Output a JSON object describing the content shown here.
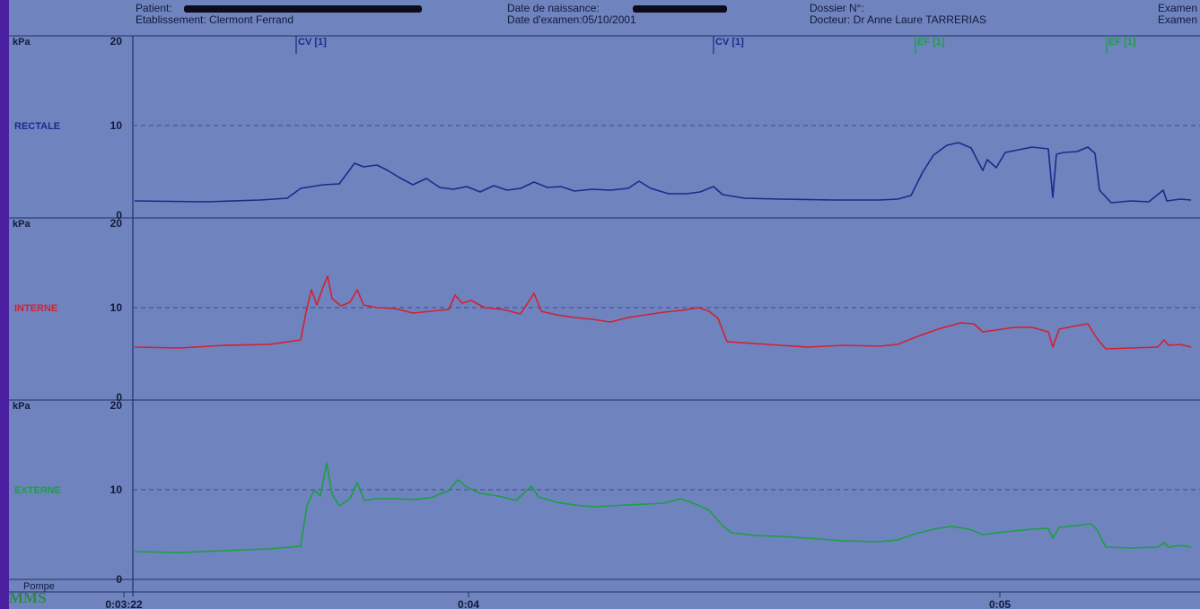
{
  "header": {
    "patient_label": "Patient:",
    "establishment": "Etablissement: Clermont Ferrand",
    "birth_label": "Date de naissance:",
    "exam_date": "Date d'examen:05/10/2001",
    "dossier": "Dossier N°:",
    "doctor": "Docteur: Dr Anne Laure TARRERIAS",
    "exam_1": "Examen",
    "exam_2": "Examen"
  },
  "logo": "MMS",
  "pump_label": "Pompe",
  "colors": {
    "rectale": "#1c2a8c",
    "interne": "#d42030",
    "externe": "#1aa040",
    "cv": "#1c2a8c",
    "ef": "#1aa040"
  },
  "chart_data": {
    "type": "line",
    "x_ticks": [
      "0:03:22",
      "0:04",
      "0:05"
    ],
    "markers": [
      {
        "label": "CV [1]",
        "x": 330,
        "color": "#1c2a8c"
      },
      {
        "label": "CV [1]",
        "x": 795,
        "color": "#1c2a8c"
      },
      {
        "label": "EF [1]",
        "x": 1020,
        "color": "#1aa040"
      },
      {
        "label": "EF [1]",
        "x": 1233,
        "color": "#1aa040"
      }
    ],
    "panels": [
      {
        "name": "RECTALE",
        "unit": "kPa",
        "ylim": [
          0,
          20
        ],
        "y_ticks": [
          "20",
          "10",
          "0"
        ],
        "color": "#1c2a8c",
        "points": [
          [
            150,
            1.6
          ],
          [
            230,
            1.5
          ],
          [
            290,
            1.7
          ],
          [
            320,
            1.9
          ],
          [
            335,
            3.0
          ],
          [
            360,
            3.4
          ],
          [
            378,
            3.5
          ],
          [
            395,
            5.8
          ],
          [
            405,
            5.4
          ],
          [
            420,
            5.6
          ],
          [
            432,
            5.0
          ],
          [
            445,
            4.2
          ],
          [
            460,
            3.4
          ],
          [
            475,
            4.1
          ],
          [
            490,
            3.1
          ],
          [
            505,
            2.9
          ],
          [
            520,
            3.2
          ],
          [
            535,
            2.6
          ],
          [
            550,
            3.3
          ],
          [
            565,
            2.8
          ],
          [
            580,
            3.0
          ],
          [
            595,
            3.7
          ],
          [
            610,
            3.1
          ],
          [
            625,
            3.2
          ],
          [
            640,
            2.7
          ],
          [
            660,
            2.9
          ],
          [
            680,
            2.8
          ],
          [
            700,
            3.0
          ],
          [
            712,
            3.8
          ],
          [
            725,
            3.0
          ],
          [
            745,
            2.4
          ],
          [
            765,
            2.4
          ],
          [
            780,
            2.6
          ],
          [
            795,
            3.2
          ],
          [
            805,
            2.3
          ],
          [
            830,
            1.9
          ],
          [
            870,
            1.8
          ],
          [
            930,
            1.7
          ],
          [
            980,
            1.7
          ],
          [
            1000,
            1.8
          ],
          [
            1015,
            2.2
          ],
          [
            1028,
            4.8
          ],
          [
            1040,
            6.7
          ],
          [
            1055,
            7.8
          ],
          [
            1068,
            8.1
          ],
          [
            1082,
            7.5
          ],
          [
            1095,
            5.0
          ],
          [
            1100,
            6.2
          ],
          [
            1110,
            5.3
          ],
          [
            1120,
            7.0
          ],
          [
            1135,
            7.3
          ],
          [
            1150,
            7.6
          ],
          [
            1168,
            7.4
          ],
          [
            1173,
            2.0
          ],
          [
            1177,
            6.8
          ],
          [
            1185,
            7.0
          ],
          [
            1200,
            7.1
          ],
          [
            1212,
            7.6
          ],
          [
            1220,
            6.9
          ],
          [
            1225,
            2.8
          ],
          [
            1238,
            1.4
          ],
          [
            1260,
            1.6
          ],
          [
            1280,
            1.5
          ],
          [
            1296,
            2.8
          ],
          [
            1300,
            1.6
          ],
          [
            1315,
            1.8
          ],
          [
            1327,
            1.7
          ]
        ]
      },
      {
        "name": "INTERNE",
        "unit": "kPa",
        "ylim": [
          0,
          20
        ],
        "y_ticks": [
          "20",
          "10",
          "0"
        ],
        "color": "#d42030",
        "points": [
          [
            150,
            5.6
          ],
          [
            200,
            5.5
          ],
          [
            250,
            5.8
          ],
          [
            300,
            5.9
          ],
          [
            335,
            6.4
          ],
          [
            341,
            9.5
          ],
          [
            347,
            12.0
          ],
          [
            353,
            10.3
          ],
          [
            360,
            12.3
          ],
          [
            365,
            13.5
          ],
          [
            370,
            11.0
          ],
          [
            380,
            10.2
          ],
          [
            390,
            10.6
          ],
          [
            398,
            12.0
          ],
          [
            405,
            10.3
          ],
          [
            420,
            10.0
          ],
          [
            440,
            9.9
          ],
          [
            460,
            9.4
          ],
          [
            480,
            9.6
          ],
          [
            500,
            9.8
          ],
          [
            507,
            11.4
          ],
          [
            515,
            10.5
          ],
          [
            525,
            10.8
          ],
          [
            540,
            10.0
          ],
          [
            560,
            9.8
          ],
          [
            580,
            9.3
          ],
          [
            595,
            11.6
          ],
          [
            603,
            9.6
          ],
          [
            620,
            9.2
          ],
          [
            640,
            8.9
          ],
          [
            660,
            8.7
          ],
          [
            680,
            8.4
          ],
          [
            700,
            8.9
          ],
          [
            720,
            9.2
          ],
          [
            740,
            9.5
          ],
          [
            760,
            9.7
          ],
          [
            778,
            10.0
          ],
          [
            790,
            9.6
          ],
          [
            800,
            8.8
          ],
          [
            810,
            6.2
          ],
          [
            840,
            6.0
          ],
          [
            870,
            5.8
          ],
          [
            900,
            5.6
          ],
          [
            940,
            5.8
          ],
          [
            980,
            5.7
          ],
          [
            1000,
            5.9
          ],
          [
            1020,
            6.7
          ],
          [
            1045,
            7.6
          ],
          [
            1070,
            8.3
          ],
          [
            1085,
            8.2
          ],
          [
            1095,
            7.3
          ],
          [
            1110,
            7.5
          ],
          [
            1130,
            7.8
          ],
          [
            1150,
            7.8
          ],
          [
            1168,
            7.3
          ],
          [
            1173,
            5.6
          ],
          [
            1180,
            7.6
          ],
          [
            1200,
            8.0
          ],
          [
            1212,
            8.2
          ],
          [
            1222,
            6.6
          ],
          [
            1232,
            5.4
          ],
          [
            1260,
            5.5
          ],
          [
            1290,
            5.6
          ],
          [
            1297,
            6.4
          ],
          [
            1302,
            5.8
          ],
          [
            1315,
            5.9
          ],
          [
            1327,
            5.6
          ]
        ]
      },
      {
        "name": "EXTERNE",
        "unit": "kPa",
        "ylim": [
          0,
          20
        ],
        "y_ticks": [
          "20",
          "10",
          "0"
        ],
        "color": "#1aa040",
        "points": [
          [
            150,
            3.1
          ],
          [
            200,
            3.0
          ],
          [
            250,
            3.2
          ],
          [
            300,
            3.4
          ],
          [
            335,
            3.7
          ],
          [
            342,
            8.2
          ],
          [
            350,
            10.0
          ],
          [
            357,
            9.3
          ],
          [
            364,
            13.0
          ],
          [
            370,
            9.5
          ],
          [
            378,
            8.2
          ],
          [
            390,
            9.0
          ],
          [
            398,
            10.8
          ],
          [
            406,
            8.8
          ],
          [
            420,
            9.0
          ],
          [
            440,
            9.0
          ],
          [
            460,
            8.9
          ],
          [
            480,
            9.1
          ],
          [
            500,
            9.9
          ],
          [
            510,
            11.1
          ],
          [
            520,
            10.3
          ],
          [
            535,
            9.6
          ],
          [
            555,
            9.3
          ],
          [
            575,
            8.8
          ],
          [
            592,
            10.4
          ],
          [
            600,
            9.2
          ],
          [
            620,
            8.6
          ],
          [
            640,
            8.3
          ],
          [
            660,
            8.1
          ],
          [
            680,
            8.2
          ],
          [
            700,
            8.3
          ],
          [
            720,
            8.4
          ],
          [
            740,
            8.5
          ],
          [
            758,
            9.0
          ],
          [
            775,
            8.4
          ],
          [
            790,
            7.7
          ],
          [
            805,
            6.0
          ],
          [
            815,
            5.2
          ],
          [
            840,
            4.9
          ],
          [
            870,
            4.8
          ],
          [
            900,
            4.6
          ],
          [
            940,
            4.3
          ],
          [
            980,
            4.2
          ],
          [
            1000,
            4.4
          ],
          [
            1020,
            5.1
          ],
          [
            1045,
            5.7
          ],
          [
            1060,
            5.9
          ],
          [
            1080,
            5.6
          ],
          [
            1095,
            5.0
          ],
          [
            1110,
            5.2
          ],
          [
            1130,
            5.4
          ],
          [
            1150,
            5.6
          ],
          [
            1168,
            5.7
          ],
          [
            1173,
            4.6
          ],
          [
            1180,
            5.8
          ],
          [
            1200,
            6.0
          ],
          [
            1215,
            6.2
          ],
          [
            1222,
            5.6
          ],
          [
            1232,
            3.6
          ],
          [
            1260,
            3.5
          ],
          [
            1290,
            3.6
          ],
          [
            1297,
            4.1
          ],
          [
            1302,
            3.6
          ],
          [
            1315,
            3.8
          ],
          [
            1327,
            3.6
          ]
        ]
      }
    ]
  }
}
